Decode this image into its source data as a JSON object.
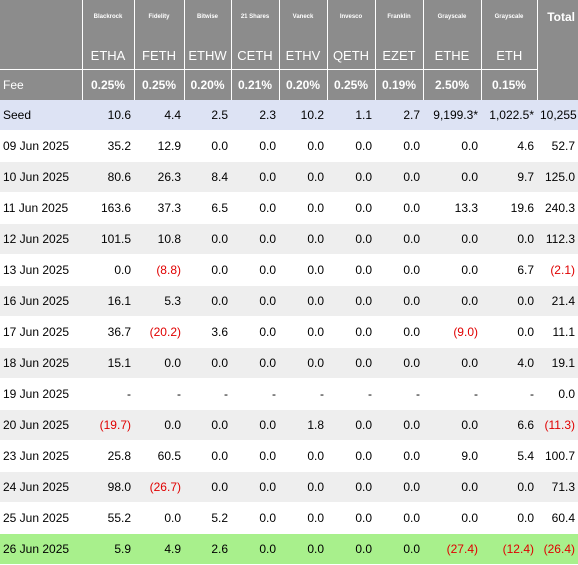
{
  "columns": [
    {
      "issuer": "Blackrock",
      "ticker": "ETHA",
      "fee": "0.25%"
    },
    {
      "issuer": "Fidelity",
      "ticker": "FETH",
      "fee": "0.25%"
    },
    {
      "issuer": "Bitwise",
      "ticker": "ETHW",
      "fee": "0.20%"
    },
    {
      "issuer": "21 Shares",
      "ticker": "CETH",
      "fee": "0.21%"
    },
    {
      "issuer": "Vaneck",
      "ticker": "ETHV",
      "fee": "0.20%"
    },
    {
      "issuer": "Invesco",
      "ticker": "QETH",
      "fee": "0.25%"
    },
    {
      "issuer": "Franklin",
      "ticker": "EZET",
      "fee": "0.19%"
    },
    {
      "issuer": "Grayscale",
      "ticker": "ETHE",
      "fee": "2.50%"
    },
    {
      "issuer": "Grayscale",
      "ticker": "ETH",
      "fee": "0.15%"
    }
  ],
  "total_label": "Total",
  "fee_label": "Fee",
  "rows": [
    {
      "label": "Seed",
      "kind": "seed",
      "values": [
        "10.6",
        "4.4",
        "2.5",
        "2.3",
        "10.2",
        "1.1",
        "2.7",
        "9,199.3*",
        "1,022.5*",
        "10,255"
      ]
    },
    {
      "label": "09 Jun 2025",
      "kind": "odd",
      "values": [
        "35.2",
        "12.9",
        "0.0",
        "0.0",
        "0.0",
        "0.0",
        "0.0",
        "0.0",
        "4.6",
        "52.7"
      ]
    },
    {
      "label": "10 Jun 2025",
      "kind": "even",
      "values": [
        "80.6",
        "26.3",
        "8.4",
        "0.0",
        "0.0",
        "0.0",
        "0.0",
        "0.0",
        "9.7",
        "125.0"
      ]
    },
    {
      "label": "11 Jun 2025",
      "kind": "odd",
      "values": [
        "163.6",
        "37.3",
        "6.5",
        "0.0",
        "0.0",
        "0.0",
        "0.0",
        "13.3",
        "19.6",
        "240.3"
      ]
    },
    {
      "label": "12 Jun 2025",
      "kind": "even",
      "values": [
        "101.5",
        "10.8",
        "0.0",
        "0.0",
        "0.0",
        "0.0",
        "0.0",
        "0.0",
        "0.0",
        "112.3"
      ]
    },
    {
      "label": "13 Jun 2025",
      "kind": "odd",
      "values": [
        "0.0",
        "(8.8)",
        "0.0",
        "0.0",
        "0.0",
        "0.0",
        "0.0",
        "0.0",
        "6.7",
        "(2.1)"
      ]
    },
    {
      "label": "16 Jun 2025",
      "kind": "even",
      "values": [
        "16.1",
        "5.3",
        "0.0",
        "0.0",
        "0.0",
        "0.0",
        "0.0",
        "0.0",
        "0.0",
        "21.4"
      ]
    },
    {
      "label": "17 Jun 2025",
      "kind": "odd",
      "values": [
        "36.7",
        "(20.2)",
        "3.6",
        "0.0",
        "0.0",
        "0.0",
        "0.0",
        "(9.0)",
        "0.0",
        "11.1"
      ]
    },
    {
      "label": "18 Jun 2025",
      "kind": "even",
      "values": [
        "15.1",
        "0.0",
        "0.0",
        "0.0",
        "0.0",
        "0.0",
        "0.0",
        "0.0",
        "4.0",
        "19.1"
      ]
    },
    {
      "label": "19 Jun 2025",
      "kind": "odd",
      "values": [
        "-",
        "-",
        "-",
        "-",
        "-",
        "-",
        "-",
        "-",
        "-",
        "0.0"
      ]
    },
    {
      "label": "20 Jun 2025",
      "kind": "even",
      "values": [
        "(19.7)",
        "0.0",
        "0.0",
        "0.0",
        "1.8",
        "0.0",
        "0.0",
        "0.0",
        "6.6",
        "(11.3)"
      ]
    },
    {
      "label": "23 Jun 2025",
      "kind": "odd",
      "values": [
        "25.8",
        "60.5",
        "0.0",
        "0.0",
        "0.0",
        "0.0",
        "0.0",
        "9.0",
        "5.4",
        "100.7"
      ]
    },
    {
      "label": "24 Jun 2025",
      "kind": "even",
      "values": [
        "98.0",
        "(26.7)",
        "0.0",
        "0.0",
        "0.0",
        "0.0",
        "0.0",
        "0.0",
        "0.0",
        "71.3"
      ]
    },
    {
      "label": "25 Jun 2025",
      "kind": "odd",
      "values": [
        "55.2",
        "0.0",
        "5.2",
        "0.0",
        "0.0",
        "0.0",
        "0.0",
        "0.0",
        "0.0",
        "60.4"
      ]
    },
    {
      "label": "26 Jun 2025",
      "kind": "latest",
      "values": [
        "5.9",
        "4.9",
        "2.6",
        "0.0",
        "0.0",
        "0.0",
        "0.0",
        "(27.4)",
        "(12.4)",
        "(26.4)"
      ]
    }
  ],
  "colors": {
    "header_bg": "#8c8c8c",
    "seed_bg": "#dde3f4",
    "stripe_bg": "#eeeeee",
    "latest_bg": "#a8f08c",
    "negative": "#e00000"
  }
}
